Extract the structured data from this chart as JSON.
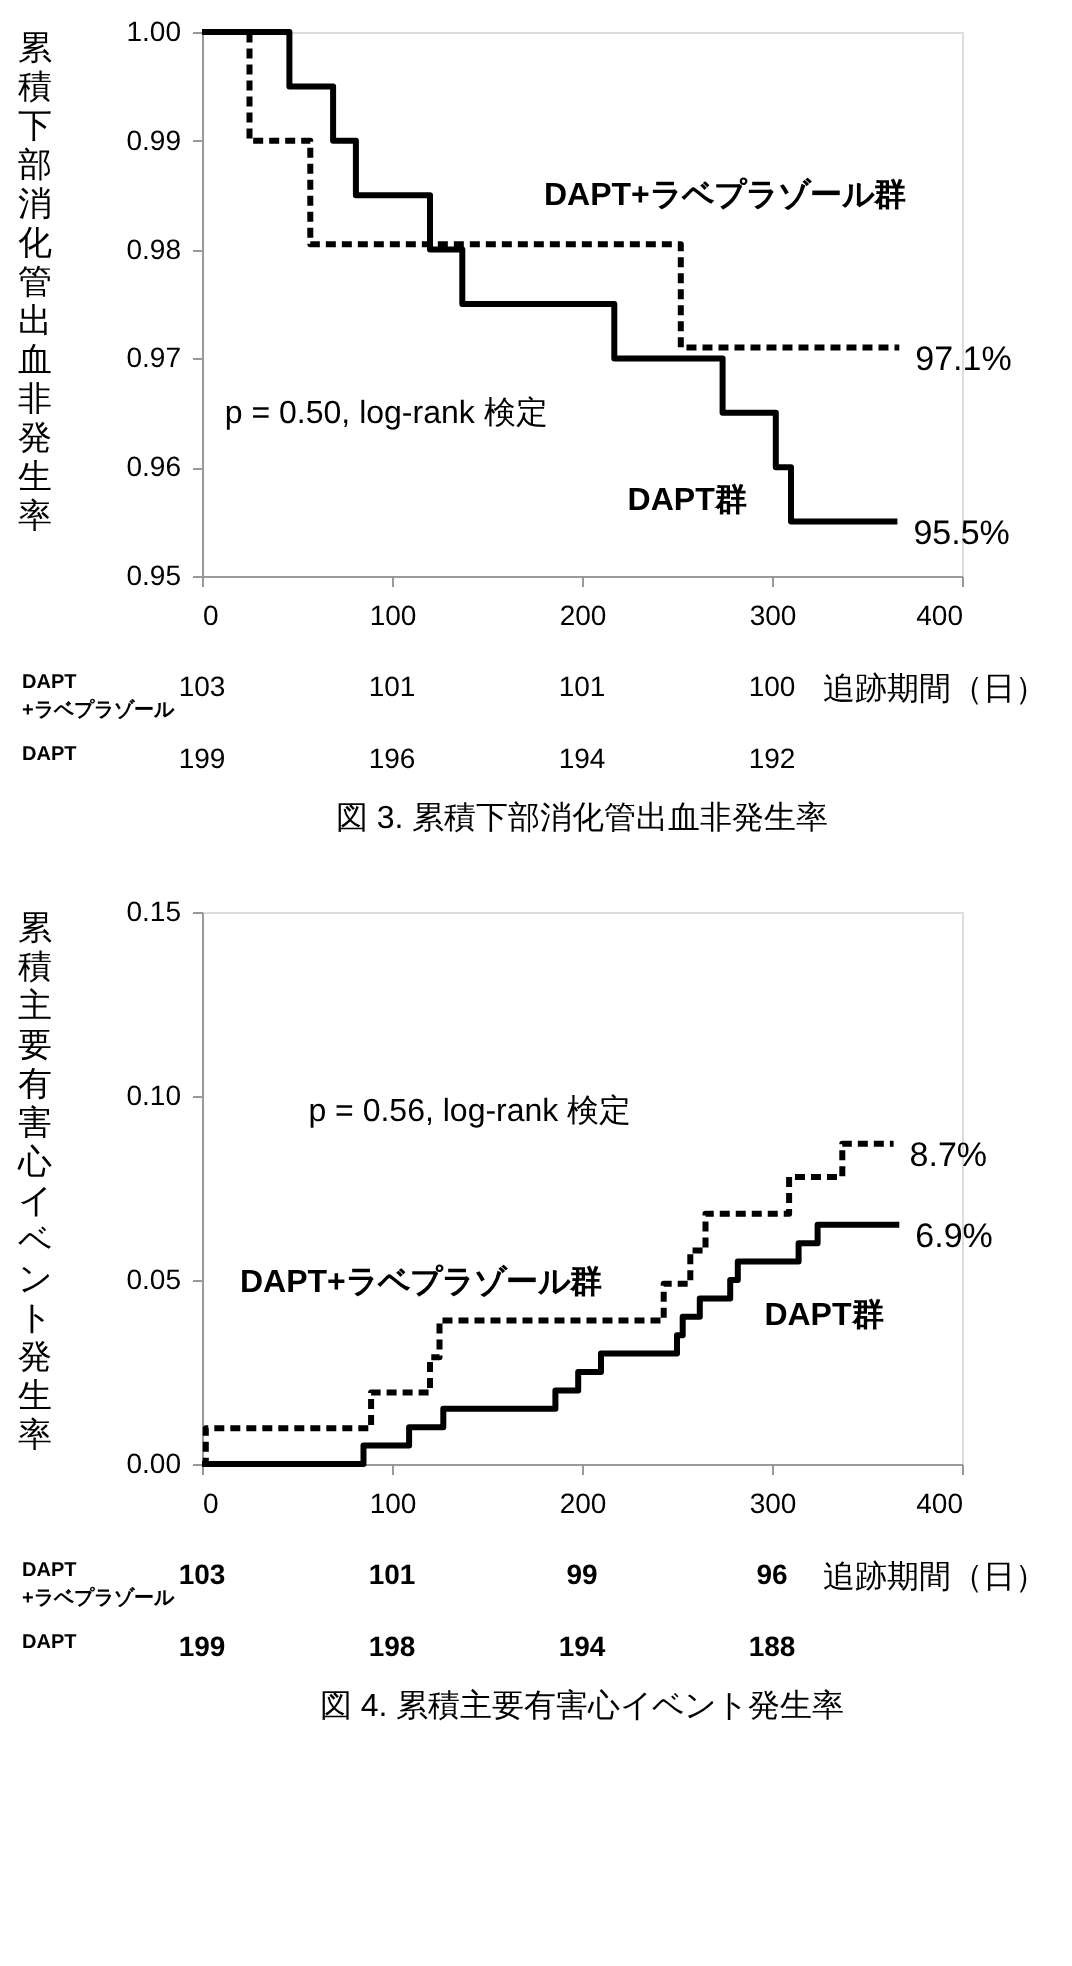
{
  "chart_data": [
    {
      "type": "step",
      "title": "図 3.  累積下部消化管出血非発生率",
      "xlabel": "追跡期間（日）",
      "ylabel": "累積下部消化管出血非発生率",
      "xlim": [
        0,
        400
      ],
      "xticks": [
        0,
        100,
        200,
        300,
        400
      ],
      "ylim": [
        0.95,
        1.0
      ],
      "yticks": [
        {
          "value": 0.95,
          "label": "0.95"
        },
        {
          "value": 0.96,
          "label": "0.96"
        },
        {
          "value": 0.97,
          "label": "0.97"
        },
        {
          "value": 0.98,
          "label": "0.98"
        },
        {
          "value": 0.99,
          "label": "0.99"
        },
        {
          "value": 1.0,
          "label": "1.00"
        }
      ],
      "grid": false,
      "series": [
        {
          "name": "DAPT+ラベプラゾール群",
          "color": "#000000",
          "line_style": "dashed",
          "x": [
            0,
            25,
            57,
            252,
            367
          ],
          "values": [
            1.0,
            0.99,
            0.9805,
            0.971,
            0.971
          ]
        },
        {
          "name": "DAPT群",
          "color": "#000000",
          "line_style": "solid",
          "x": [
            0,
            46,
            69,
            81,
            120,
            137,
            217,
            274,
            302,
            310,
            366
          ],
          "values": [
            1.0,
            0.995,
            0.99,
            0.985,
            0.98,
            0.975,
            0.97,
            0.965,
            0.96,
            0.955,
            0.955
          ]
        }
      ],
      "annotations": [
        "p = 0.50, log-rank 検定",
        {
          "text": "97.1%",
          "x": 367,
          "y": 0.971
        },
        {
          "text": "95.5%",
          "x": 366,
          "y": 0.955
        },
        "DAPT +ラベプラゾール",
        "103",
        "101",
        "101",
        "100",
        "DAPT",
        "199",
        "196",
        "194",
        "192"
      ]
    },
    {
      "type": "step",
      "title": "図 4.  累積主要有害心イベント発生率",
      "xlabel": "追跡期間（日）",
      "ylabel": "累積主要有害心イベント発生率",
      "xlim": [
        0,
        400
      ],
      "xticks": [
        0,
        100,
        200,
        300,
        400
      ],
      "ylim": [
        0.0,
        0.15
      ],
      "yticks": [
        {
          "value": 0.0,
          "label": "0.00"
        },
        {
          "value": 0.05,
          "label": "0.05"
        },
        {
          "value": 0.1,
          "label": "0.10"
        },
        {
          "value": 0.15,
          "label": "0.15"
        }
      ],
      "grid": false,
      "series": [
        {
          "name": "DAPT+ラベプラゾール群",
          "color": "#000000",
          "line_style": "dashed",
          "x": [
            0,
            2,
            89,
            120,
            125,
            243,
            257,
            265,
            309,
            337,
            364
          ],
          "values": [
            0.0,
            0.0097,
            0.0194,
            0.029,
            0.039,
            0.049,
            0.058,
            0.068,
            0.078,
            0.087,
            0.087
          ]
        },
        {
          "name": "DAPT群",
          "color": "#000000",
          "line_style": "solid",
          "x": [
            0,
            85,
            109,
            127,
            186,
            198,
            210,
            250,
            253,
            262,
            278,
            282,
            314,
            324,
            367
          ],
          "values": [
            0.0,
            0.005,
            0.01,
            0.015,
            0.02,
            0.025,
            0.03,
            0.035,
            0.04,
            0.045,
            0.05,
            0.055,
            0.06,
            0.065,
            0.065
          ]
        }
      ],
      "annotations": [
        "p = 0.56, log-rank 検定",
        {
          "text": "8.7%",
          "x": 364,
          "y": 0.087
        },
        {
          "text": "6.9%",
          "x": 367,
          "y": 0.065
        },
        "DAPT +ラベプラゾール",
        "103",
        "101",
        "99",
        "96",
        "DAPT",
        "199",
        "198",
        "194",
        "188"
      ]
    }
  ]
}
